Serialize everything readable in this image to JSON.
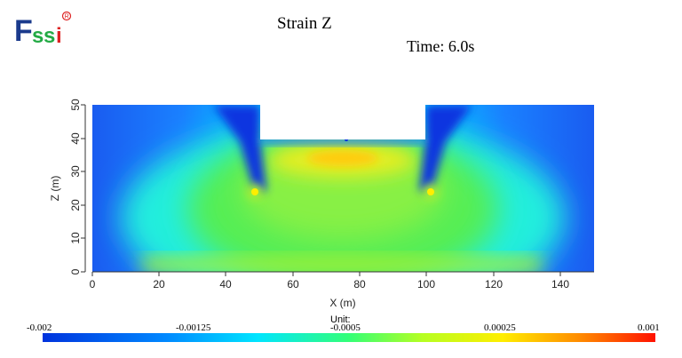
{
  "logo": {
    "text": "Fssi",
    "registered": "®"
  },
  "title": "Strain Z",
  "time_label": "Time: 6.0s",
  "axes": {
    "xlabel": "X (m)",
    "ylabel": "Z (m)",
    "xticks": [
      "0",
      "20",
      "40",
      "60",
      "80",
      "100",
      "120",
      "140"
    ],
    "yticks": [
      "0",
      "10",
      "20",
      "30",
      "40",
      "50"
    ]
  },
  "colorbar": {
    "unit_label": "Unit:",
    "ticks": [
      "-0.002",
      "-0.00125",
      "-0.0005",
      "0.00025",
      "0.001"
    ],
    "colors": [
      "#0033dd",
      "#00aaff",
      "#22ffee",
      "#44ff55",
      "#ccff22",
      "#ffee00",
      "#ff7700",
      "#ff1100"
    ]
  },
  "chart_data": {
    "type": "heatmap",
    "title": "Strain Z",
    "xlabel": "X (m)",
    "ylabel": "Z (m)",
    "xlim": [
      0,
      150
    ],
    "ylim": [
      0,
      50
    ],
    "value_range": [
      -0.002,
      0.001
    ]
  }
}
